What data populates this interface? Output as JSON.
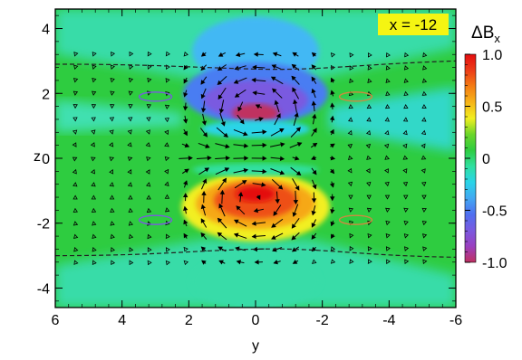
{
  "chart_data": {
    "type": "heatmap",
    "title": "",
    "annotation": "x = -12",
    "xlabel": "y",
    "ylabel": "z",
    "x_range": [
      6,
      -6
    ],
    "x_reversed": true,
    "y_range": [
      -4.6,
      4.6
    ],
    "x_ticks": [
      "6",
      "4",
      "2",
      "0",
      "-2",
      "-4",
      "-6"
    ],
    "y_ticks": [
      "4",
      "2",
      "0",
      "-2",
      "-4"
    ],
    "colorbar": {
      "label": "ΔB",
      "label_subscript": "x",
      "range": [
        -1.0,
        1.0
      ],
      "ticks": [
        "1.0",
        "0.5",
        "0",
        "-0.5",
        "-1.0"
      ],
      "colors": [
        "#c03060",
        "#9a40c0",
        "#7a5ae0",
        "#4f6ff0",
        "#43a8f2",
        "#2ad4e8",
        "#30e0a0",
        "#2ecc40",
        "#6cd62a",
        "#f2ef21",
        "#f6b418",
        "#f47d14",
        "#ec3c18",
        "#e40e10"
      ]
    },
    "background_color": "#2ecc40",
    "features": {
      "flux_rope_positive_center": [
        0,
        -1.1
      ],
      "flux_rope_negative_center": [
        0,
        1.3
      ],
      "current_sheet_z": [
        2.9,
        -3.0
      ],
      "ellipses_y": [
        3.0,
        -3.0
      ],
      "ellipses_z": [
        1.9,
        -1.9
      ]
    }
  }
}
